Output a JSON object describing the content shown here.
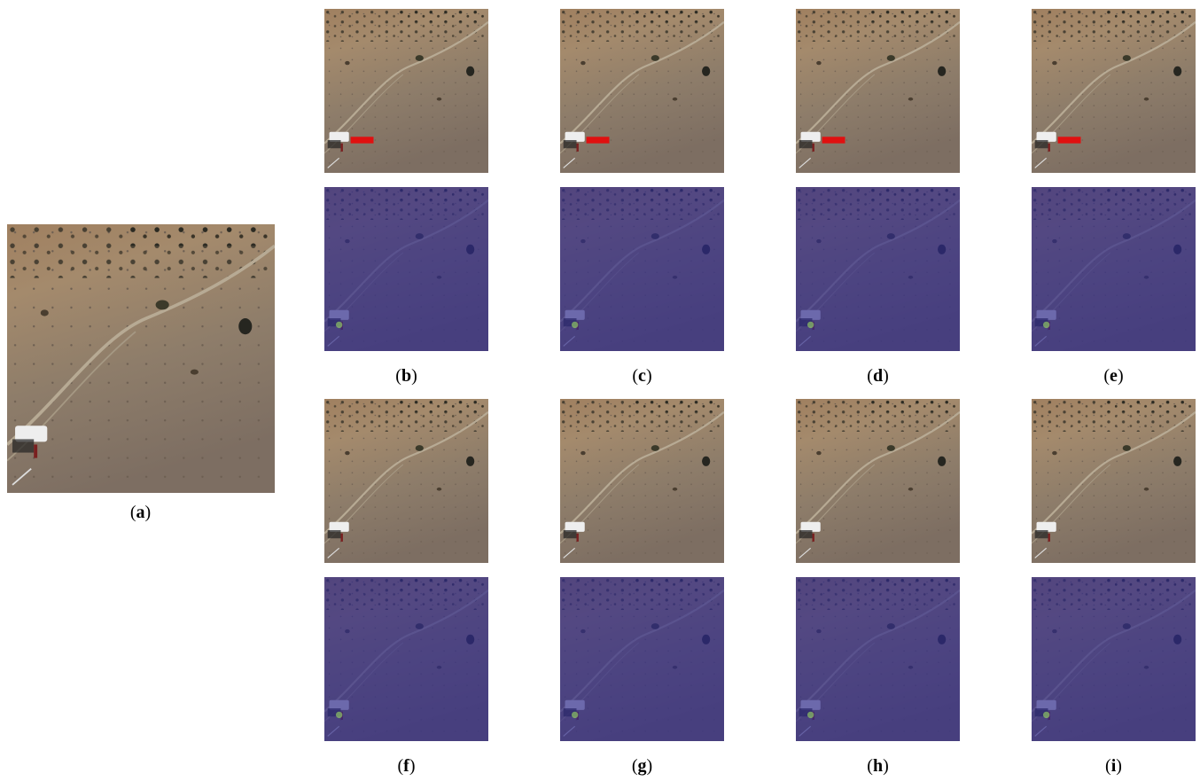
{
  "figure": {
    "labels": [
      "(a)",
      "(b)",
      "(c)",
      "(d)",
      "(e)",
      "(f)",
      "(g)",
      "(h)",
      "(i)"
    ]
  }
}
